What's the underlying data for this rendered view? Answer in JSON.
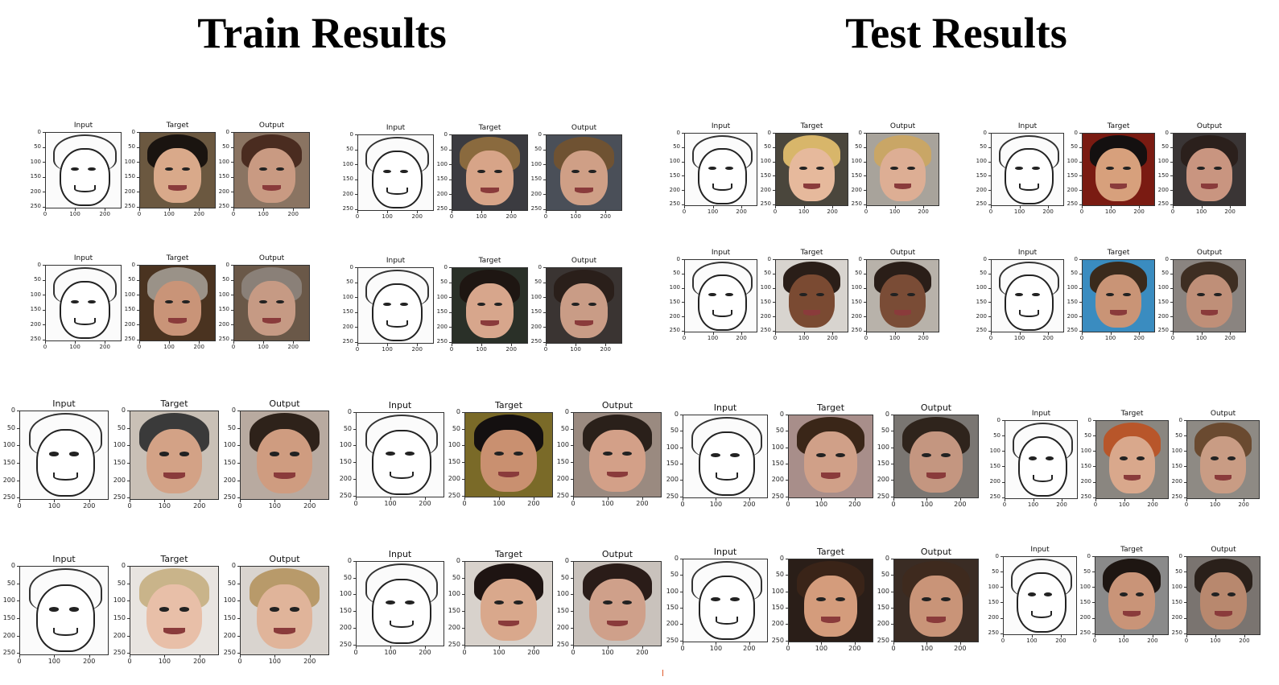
{
  "titles": {
    "train": "Train Results",
    "test": "Test Results"
  },
  "panel_labels": [
    "Input",
    "Target",
    "Output"
  ],
  "axis": {
    "y_ticks": [
      "0",
      "50",
      "100",
      "150",
      "200",
      "250"
    ],
    "x_ticks": [
      "0",
      "100",
      "200"
    ]
  },
  "colors": {
    "sketch_line": "#222222",
    "axis_text": "#222222"
  },
  "groups": [
    {
      "section": "train",
      "subject": "woman-hat",
      "target": {
        "bg": "#6b5840",
        "hair": "#1a1410",
        "skin": "#d9a98a"
      },
      "output": {
        "bg": "#8a7462",
        "hair": "#4a2c20",
        "skin": "#c99a82"
      }
    },
    {
      "section": "train",
      "subject": "man-blond",
      "target": {
        "bg": "#3b3b40",
        "hair": "#8a6a3e",
        "skin": "#d7a488"
      },
      "output": {
        "bg": "#4a4f58",
        "hair": "#6f5232",
        "skin": "#cf9f86"
      }
    },
    {
      "section": "test",
      "subject": "woman-blonde",
      "target": {
        "bg": "#4a463c",
        "hair": "#d8b66a",
        "skin": "#e6b99c"
      },
      "output": {
        "bg": "#a8a39b",
        "hair": "#c9a666",
        "skin": "#ddae94"
      }
    },
    {
      "section": "test",
      "subject": "woman-dark-hair",
      "target": {
        "bg": "#7a1b12",
        "hair": "#141010",
        "skin": "#d7a07c"
      },
      "output": {
        "bg": "#3a3535",
        "hair": "#2b201c",
        "skin": "#c99580"
      }
    },
    {
      "section": "train",
      "subject": "man-grey-hair",
      "target": {
        "bg": "#4a3320",
        "hair": "#9a9288",
        "skin": "#c99478"
      },
      "output": {
        "bg": "#6a5848",
        "hair": "#8a8078",
        "skin": "#c69a84"
      }
    },
    {
      "section": "train",
      "subject": "man-dark-hair",
      "target": {
        "bg": "#2a3028",
        "hair": "#1e1612",
        "skin": "#d7a68c"
      },
      "output": {
        "bg": "#3a3432",
        "hair": "#2a1f1a",
        "skin": "#c99c86"
      }
    },
    {
      "section": "test",
      "subject": "man-bald",
      "target": {
        "bg": "#d8d4cf",
        "hair": "#2a1e18",
        "skin": "#7a4a32"
      },
      "output": {
        "bg": "#b8b2aa",
        "hair": "#2a1e18",
        "skin": "#7a4c36"
      }
    },
    {
      "section": "test",
      "subject": "man-curly",
      "target": {
        "bg": "#3a8cc0",
        "hair": "#3a2a1c",
        "skin": "#c99476"
      },
      "output": {
        "bg": "#8a8480",
        "hair": "#3e2e22",
        "skin": "#bf8f78"
      }
    },
    {
      "section": "train",
      "subject": "man-fedora",
      "target": {
        "bg": "#c9c0b6",
        "hair": "#3a3a3a",
        "skin": "#d3a286"
      },
      "output": {
        "bg": "#b8aaa0",
        "hair": "#2e221a",
        "skin": "#cf9c80"
      }
    },
    {
      "section": "train",
      "subject": "man-smiling",
      "target": {
        "bg": "#7a6a28",
        "hair": "#141010",
        "skin": "#c99070"
      },
      "output": {
        "bg": "#9a8a80",
        "hair": "#2a201a",
        "skin": "#d3a088"
      }
    },
    {
      "section": "test",
      "subject": "man-beard",
      "target": {
        "bg": "#a88e8a",
        "hair": "#3a2618",
        "skin": "#d0a088"
      },
      "output": {
        "bg": "#7a7672",
        "hair": "#2f241c",
        "skin": "#c49680"
      }
    },
    {
      "section": "test",
      "subject": "man-ginger",
      "target": {
        "bg": "#8a8680",
        "hair": "#b8562a",
        "skin": "#d9a88c"
      },
      "output": {
        "bg": "#8e8a84",
        "hair": "#6a4a30",
        "skin": "#c99c84"
      }
    },
    {
      "section": "train",
      "subject": "woman-tongue",
      "target": {
        "bg": "#e8e4e0",
        "hair": "#c9b48a",
        "skin": "#e8bfa8"
      },
      "output": {
        "bg": "#d9d4cf",
        "hair": "#b89a6a",
        "skin": "#e0b49a"
      }
    },
    {
      "section": "train",
      "subject": "woman-brunette",
      "target": {
        "bg": "#d8d2cc",
        "hair": "#1e1412",
        "skin": "#d9a88c"
      },
      "output": {
        "bg": "#c9c2bc",
        "hair": "#2a1c18",
        "skin": "#cfa08a"
      }
    },
    {
      "section": "test",
      "subject": "woman-smile",
      "target": {
        "bg": "#2a1e18",
        "hair": "#3a2418",
        "skin": "#d49c7c"
      },
      "output": {
        "bg": "#3a2c24",
        "hair": "#3e2a1e",
        "skin": "#c99478"
      }
    },
    {
      "section": "test",
      "subject": "man-stubble",
      "target": {
        "bg": "#8a8a8a",
        "hair": "#1e1612",
        "skin": "#c99478"
      },
      "output": {
        "bg": "#7a7470",
        "hair": "#2a201a",
        "skin": "#b8886e"
      }
    }
  ]
}
